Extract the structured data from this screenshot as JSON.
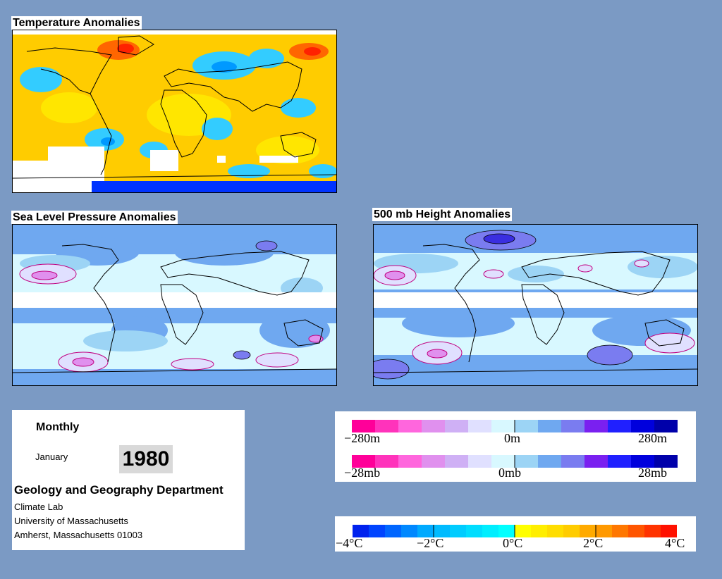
{
  "panels": {
    "temperature": {
      "title": "Temperature Anomalies"
    },
    "pressure": {
      "title": "Sea Level Pressure Anomalies"
    },
    "height": {
      "title": "500 mb Height Anomalies"
    }
  },
  "info": {
    "mode": "Monthly",
    "month": "January",
    "year": "1980",
    "department": "Geology and Geography Department",
    "lines": [
      "Climate Lab",
      "University of Massachusetts",
      "Amherst, Massachusetts 01003"
    ]
  },
  "legends": {
    "height": {
      "min": "−280m",
      "mid": "0m",
      "max": "280m"
    },
    "pressure": {
      "min": "−28mb",
      "mid": "0mb",
      "max": "28mb"
    },
    "temperature": {
      "labels": [
        "−4°C",
        "−2°C",
        "0°C",
        "2°C",
        "4°C"
      ]
    }
  },
  "colors": {
    "background": "#7b9ac4",
    "anomaly_scale_cool": [
      "#0033ff",
      "#0066ff",
      "#0099ff",
      "#00ccff",
      "#33e6ff"
    ],
    "anomaly_scale_warm": [
      "#ffff00",
      "#ffcc00",
      "#ff9900",
      "#ff6600",
      "#ff2200"
    ],
    "pressure_scale": [
      "#ff0099",
      "#ff33bb",
      "#ff66dd",
      "#e090ee",
      "#cfb0f5",
      "#e0e0ff",
      "#d8f8ff",
      "#9cd4f5",
      "#6fa8f0",
      "#7a7cf0",
      "#7a20f0",
      "#2020ff",
      "#0000dd",
      "#0000aa"
    ]
  }
}
